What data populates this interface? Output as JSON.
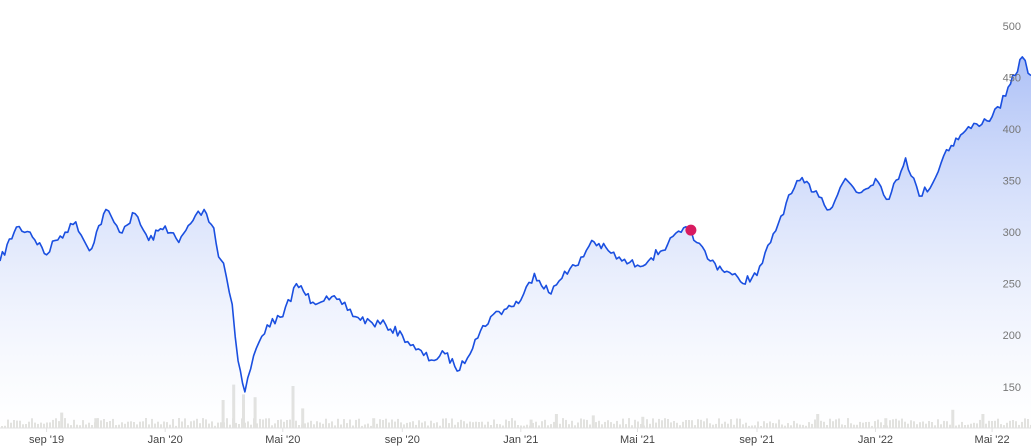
{
  "colors": {
    "line": "#1a4fe0",
    "area_top": "#9fb6f5",
    "area_bottom": "#ffffff",
    "volume": "#d3d3ce",
    "marker": "#d81b60",
    "axis": "#e2e2e2"
  },
  "chart_data": {
    "type": "area",
    "title": "",
    "xlabel": "",
    "ylabel": "",
    "ylim": [
      110,
      500
    ],
    "y_ticks": [
      "150",
      "200",
      "250",
      "300",
      "350",
      "400",
      "450",
      "500"
    ],
    "x_tick_labels": [
      "sep '19",
      "Jan '20",
      "Mai '20",
      "sep '20",
      "Jan '21",
      "Mai '21",
      "sep '21",
      "Jan '22",
      "Mai '22"
    ],
    "grid": false,
    "legend": "none",
    "series": [
      {
        "x": [
          "2019-07-15",
          "2019-08-01",
          "2019-08-15",
          "2019-09-01",
          "2019-09-10",
          "2019-09-20",
          "2019-10-01",
          "2019-10-15",
          "2019-11-01",
          "2019-11-15",
          "2019-12-01",
          "2019-12-15",
          "2020-01-01",
          "2020-01-15",
          "2020-02-01",
          "2020-02-10",
          "2020-02-20",
          "2020-02-25",
          "2020-03-01",
          "2020-03-10",
          "2020-03-16",
          "2020-03-23",
          "2020-04-01",
          "2020-04-15",
          "2020-05-01",
          "2020-05-15",
          "2020-06-01",
          "2020-06-15",
          "2020-07-01",
          "2020-07-15",
          "2020-08-01",
          "2020-08-15",
          "2020-09-01",
          "2020-09-15",
          "2020-10-01",
          "2020-10-15",
          "2020-10-30",
          "2020-11-15",
          "2020-12-01",
          "2020-12-15",
          "2021-01-01",
          "2021-01-15",
          "2021-02-01",
          "2021-02-15",
          "2021-03-01",
          "2021-03-15",
          "2021-04-01",
          "2021-04-15",
          "2021-05-01",
          "2021-05-15",
          "2021-06-01",
          "2021-06-15",
          "2021-06-25",
          "2021-07-01",
          "2021-07-15",
          "2021-08-01",
          "2021-08-15",
          "2021-09-01",
          "2021-09-15",
          "2021-10-01",
          "2021-10-15",
          "2021-11-01",
          "2021-11-15",
          "2021-12-01",
          "2021-12-15",
          "2022-01-01",
          "2022-01-15",
          "2022-02-01",
          "2022-02-15",
          "2022-03-01",
          "2022-03-15",
          "2022-04-01",
          "2022-04-15",
          "2022-05-01",
          "2022-05-15",
          "2022-06-01",
          "2022-06-10"
        ],
        "y": [
          272,
          305,
          300,
          278,
          292,
          300,
          310,
          282,
          322,
          300,
          318,
          292,
          306,
          290,
          316,
          322,
          304,
          276,
          270,
          230,
          175,
          145,
          180,
          210,
          218,
          250,
          232,
          238,
          230,
          218,
          212,
          210,
          200,
          186,
          176,
          182,
          166,
          196,
          218,
          225,
          234,
          260,
          240,
          262,
          268,
          292,
          282,
          272,
          268,
          275,
          288,
          300,
          302,
          290,
          272,
          262,
          252,
          258,
          290,
          328,
          350,
          340,
          322,
          352,
          338,
          352,
          332,
          372,
          335,
          348,
          380,
          396,
          405,
          412,
          432,
          470,
          452
        ],
        "marker_at": "2021-06-25"
      }
    ],
    "volume": [
      {
        "x": "2019-09-15",
        "v": 22
      },
      {
        "x": "2019-10-20",
        "v": 14
      },
      {
        "x": "2020-02-28",
        "v": 40
      },
      {
        "x": "2020-03-10",
        "v": 62
      },
      {
        "x": "2020-03-20",
        "v": 48
      },
      {
        "x": "2020-04-01",
        "v": 44
      },
      {
        "x": "2020-05-10",
        "v": 60
      },
      {
        "x": "2020-05-20",
        "v": 28
      },
      {
        "x": "2020-08-01",
        "v": 14
      },
      {
        "x": "2021-01-10",
        "v": 12
      },
      {
        "x": "2021-02-05",
        "v": 20
      },
      {
        "x": "2021-03-15",
        "v": 18
      },
      {
        "x": "2021-05-05",
        "v": 16
      },
      {
        "x": "2021-11-01",
        "v": 20
      },
      {
        "x": "2022-01-10",
        "v": 14
      },
      {
        "x": "2022-03-20",
        "v": 26
      },
      {
        "x": "2022-04-20",
        "v": 20
      }
    ]
  }
}
